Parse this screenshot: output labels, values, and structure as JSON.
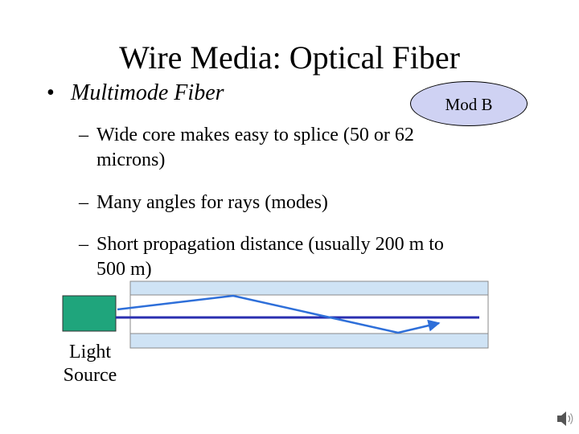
{
  "slide": {
    "title": "Wire Media: Optical Fiber",
    "bullet": {
      "symbol": "•",
      "text": "Multimode Fiber"
    },
    "badge": "Mod B",
    "sub_bullets": [
      {
        "dash": "–",
        "lines": [
          "Wide core makes easy to splice (50 or 62",
          "microns)"
        ]
      },
      {
        "dash": "–",
        "lines": [
          "Many angles for rays (modes)"
        ]
      },
      {
        "dash": "–",
        "lines": [
          "Short propagation distance (usually 200 m to",
          "500 m)"
        ]
      }
    ]
  },
  "diagram": {
    "light_source_label": [
      "Light",
      "Source"
    ],
    "colors": {
      "cladding": "#cfe3f5",
      "core": "#ffffff",
      "source": "#1fa57c",
      "ray": "#2e6fd9",
      "axis_ray": "#2a2fb0",
      "badge": "#cfd2f3"
    }
  },
  "icons": {
    "audio": "speaker-icon"
  }
}
